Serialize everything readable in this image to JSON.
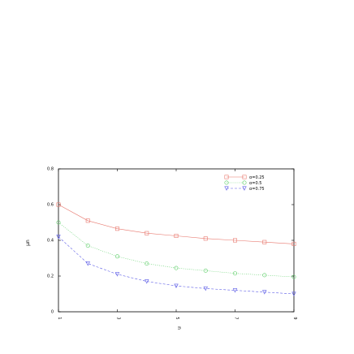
{
  "chart_data": {
    "type": "line",
    "xlabel": "n",
    "ylabel": "μn",
    "xlim": [
      1,
      9
    ],
    "ylim": [
      0,
      0.8
    ],
    "xticks": [
      "1",
      "3",
      "5",
      "7",
      "9"
    ],
    "yticks": [
      "0",
      "0.2",
      "0.4",
      "0.6",
      "0.8"
    ],
    "legend_position": "top-right",
    "grid": false,
    "series": [
      {
        "name": "α=0.25",
        "color": "#e8786e",
        "marker": "square",
        "line_style": "solid",
        "x": [
          1,
          2,
          3,
          4,
          5,
          6,
          7,
          8,
          9
        ],
        "values": [
          0.6,
          0.51,
          0.465,
          0.44,
          0.425,
          0.41,
          0.4,
          0.39,
          0.38
        ]
      },
      {
        "name": "α=0.5",
        "color": "#5fcf6a",
        "marker": "circle",
        "line_style": "dotted",
        "x": [
          1,
          2,
          3,
          4,
          5,
          6,
          7,
          8,
          9
        ],
        "values": [
          0.5,
          0.37,
          0.31,
          0.27,
          0.245,
          0.23,
          0.215,
          0.205,
          0.195
        ]
      },
      {
        "name": "α=0.75",
        "color": "#5a5ae6",
        "marker": "triangle-down",
        "line_style": "dashed",
        "x": [
          1,
          2,
          3,
          4,
          5,
          6,
          7,
          8,
          9
        ],
        "values": [
          0.42,
          0.27,
          0.21,
          0.17,
          0.145,
          0.13,
          0.12,
          0.11,
          0.1
        ]
      }
    ]
  }
}
